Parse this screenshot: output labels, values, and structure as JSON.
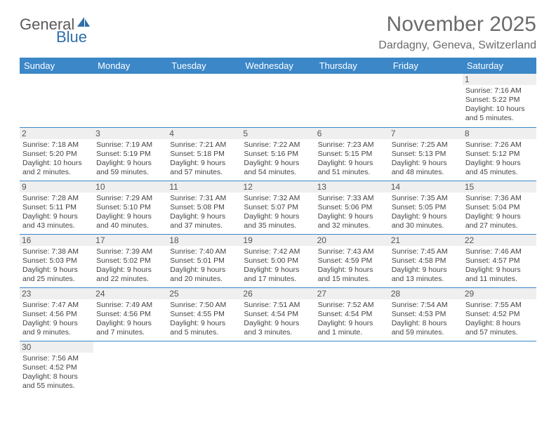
{
  "logo": {
    "text1": "General",
    "text2": "Blue"
  },
  "title": "November 2025",
  "location": "Dardagny, Geneva, Switzerland",
  "colors": {
    "header_bg": "#3b87c8",
    "header_text": "#ffffff",
    "border": "#3b87c8",
    "daynum_bg": "#efefef",
    "text": "#444444",
    "title_color": "#6b6b6b"
  },
  "weekdays": [
    "Sunday",
    "Monday",
    "Tuesday",
    "Wednesday",
    "Thursday",
    "Friday",
    "Saturday"
  ],
  "weeks": [
    [
      null,
      null,
      null,
      null,
      null,
      null,
      {
        "d": "1",
        "sr": "Sunrise: 7:16 AM",
        "ss": "Sunset: 5:22 PM",
        "dl1": "Daylight: 10 hours",
        "dl2": "and 5 minutes."
      }
    ],
    [
      {
        "d": "2",
        "sr": "Sunrise: 7:18 AM",
        "ss": "Sunset: 5:20 PM",
        "dl1": "Daylight: 10 hours",
        "dl2": "and 2 minutes."
      },
      {
        "d": "3",
        "sr": "Sunrise: 7:19 AM",
        "ss": "Sunset: 5:19 PM",
        "dl1": "Daylight: 9 hours",
        "dl2": "and 59 minutes."
      },
      {
        "d": "4",
        "sr": "Sunrise: 7:21 AM",
        "ss": "Sunset: 5:18 PM",
        "dl1": "Daylight: 9 hours",
        "dl2": "and 57 minutes."
      },
      {
        "d": "5",
        "sr": "Sunrise: 7:22 AM",
        "ss": "Sunset: 5:16 PM",
        "dl1": "Daylight: 9 hours",
        "dl2": "and 54 minutes."
      },
      {
        "d": "6",
        "sr": "Sunrise: 7:23 AM",
        "ss": "Sunset: 5:15 PM",
        "dl1": "Daylight: 9 hours",
        "dl2": "and 51 minutes."
      },
      {
        "d": "7",
        "sr": "Sunrise: 7:25 AM",
        "ss": "Sunset: 5:13 PM",
        "dl1": "Daylight: 9 hours",
        "dl2": "and 48 minutes."
      },
      {
        "d": "8",
        "sr": "Sunrise: 7:26 AM",
        "ss": "Sunset: 5:12 PM",
        "dl1": "Daylight: 9 hours",
        "dl2": "and 45 minutes."
      }
    ],
    [
      {
        "d": "9",
        "sr": "Sunrise: 7:28 AM",
        "ss": "Sunset: 5:11 PM",
        "dl1": "Daylight: 9 hours",
        "dl2": "and 43 minutes."
      },
      {
        "d": "10",
        "sr": "Sunrise: 7:29 AM",
        "ss": "Sunset: 5:10 PM",
        "dl1": "Daylight: 9 hours",
        "dl2": "and 40 minutes."
      },
      {
        "d": "11",
        "sr": "Sunrise: 7:31 AM",
        "ss": "Sunset: 5:08 PM",
        "dl1": "Daylight: 9 hours",
        "dl2": "and 37 minutes."
      },
      {
        "d": "12",
        "sr": "Sunrise: 7:32 AM",
        "ss": "Sunset: 5:07 PM",
        "dl1": "Daylight: 9 hours",
        "dl2": "and 35 minutes."
      },
      {
        "d": "13",
        "sr": "Sunrise: 7:33 AM",
        "ss": "Sunset: 5:06 PM",
        "dl1": "Daylight: 9 hours",
        "dl2": "and 32 minutes."
      },
      {
        "d": "14",
        "sr": "Sunrise: 7:35 AM",
        "ss": "Sunset: 5:05 PM",
        "dl1": "Daylight: 9 hours",
        "dl2": "and 30 minutes."
      },
      {
        "d": "15",
        "sr": "Sunrise: 7:36 AM",
        "ss": "Sunset: 5:04 PM",
        "dl1": "Daylight: 9 hours",
        "dl2": "and 27 minutes."
      }
    ],
    [
      {
        "d": "16",
        "sr": "Sunrise: 7:38 AM",
        "ss": "Sunset: 5:03 PM",
        "dl1": "Daylight: 9 hours",
        "dl2": "and 25 minutes."
      },
      {
        "d": "17",
        "sr": "Sunrise: 7:39 AM",
        "ss": "Sunset: 5:02 PM",
        "dl1": "Daylight: 9 hours",
        "dl2": "and 22 minutes."
      },
      {
        "d": "18",
        "sr": "Sunrise: 7:40 AM",
        "ss": "Sunset: 5:01 PM",
        "dl1": "Daylight: 9 hours",
        "dl2": "and 20 minutes."
      },
      {
        "d": "19",
        "sr": "Sunrise: 7:42 AM",
        "ss": "Sunset: 5:00 PM",
        "dl1": "Daylight: 9 hours",
        "dl2": "and 17 minutes."
      },
      {
        "d": "20",
        "sr": "Sunrise: 7:43 AM",
        "ss": "Sunset: 4:59 PM",
        "dl1": "Daylight: 9 hours",
        "dl2": "and 15 minutes."
      },
      {
        "d": "21",
        "sr": "Sunrise: 7:45 AM",
        "ss": "Sunset: 4:58 PM",
        "dl1": "Daylight: 9 hours",
        "dl2": "and 13 minutes."
      },
      {
        "d": "22",
        "sr": "Sunrise: 7:46 AM",
        "ss": "Sunset: 4:57 PM",
        "dl1": "Daylight: 9 hours",
        "dl2": "and 11 minutes."
      }
    ],
    [
      {
        "d": "23",
        "sr": "Sunrise: 7:47 AM",
        "ss": "Sunset: 4:56 PM",
        "dl1": "Daylight: 9 hours",
        "dl2": "and 9 minutes."
      },
      {
        "d": "24",
        "sr": "Sunrise: 7:49 AM",
        "ss": "Sunset: 4:56 PM",
        "dl1": "Daylight: 9 hours",
        "dl2": "and 7 minutes."
      },
      {
        "d": "25",
        "sr": "Sunrise: 7:50 AM",
        "ss": "Sunset: 4:55 PM",
        "dl1": "Daylight: 9 hours",
        "dl2": "and 5 minutes."
      },
      {
        "d": "26",
        "sr": "Sunrise: 7:51 AM",
        "ss": "Sunset: 4:54 PM",
        "dl1": "Daylight: 9 hours",
        "dl2": "and 3 minutes."
      },
      {
        "d": "27",
        "sr": "Sunrise: 7:52 AM",
        "ss": "Sunset: 4:54 PM",
        "dl1": "Daylight: 9 hours",
        "dl2": "and 1 minute."
      },
      {
        "d": "28",
        "sr": "Sunrise: 7:54 AM",
        "ss": "Sunset: 4:53 PM",
        "dl1": "Daylight: 8 hours",
        "dl2": "and 59 minutes."
      },
      {
        "d": "29",
        "sr": "Sunrise: 7:55 AM",
        "ss": "Sunset: 4:52 PM",
        "dl1": "Daylight: 8 hours",
        "dl2": "and 57 minutes."
      }
    ],
    [
      {
        "d": "30",
        "sr": "Sunrise: 7:56 AM",
        "ss": "Sunset: 4:52 PM",
        "dl1": "Daylight: 8 hours",
        "dl2": "and 55 minutes."
      },
      null,
      null,
      null,
      null,
      null,
      null
    ]
  ]
}
